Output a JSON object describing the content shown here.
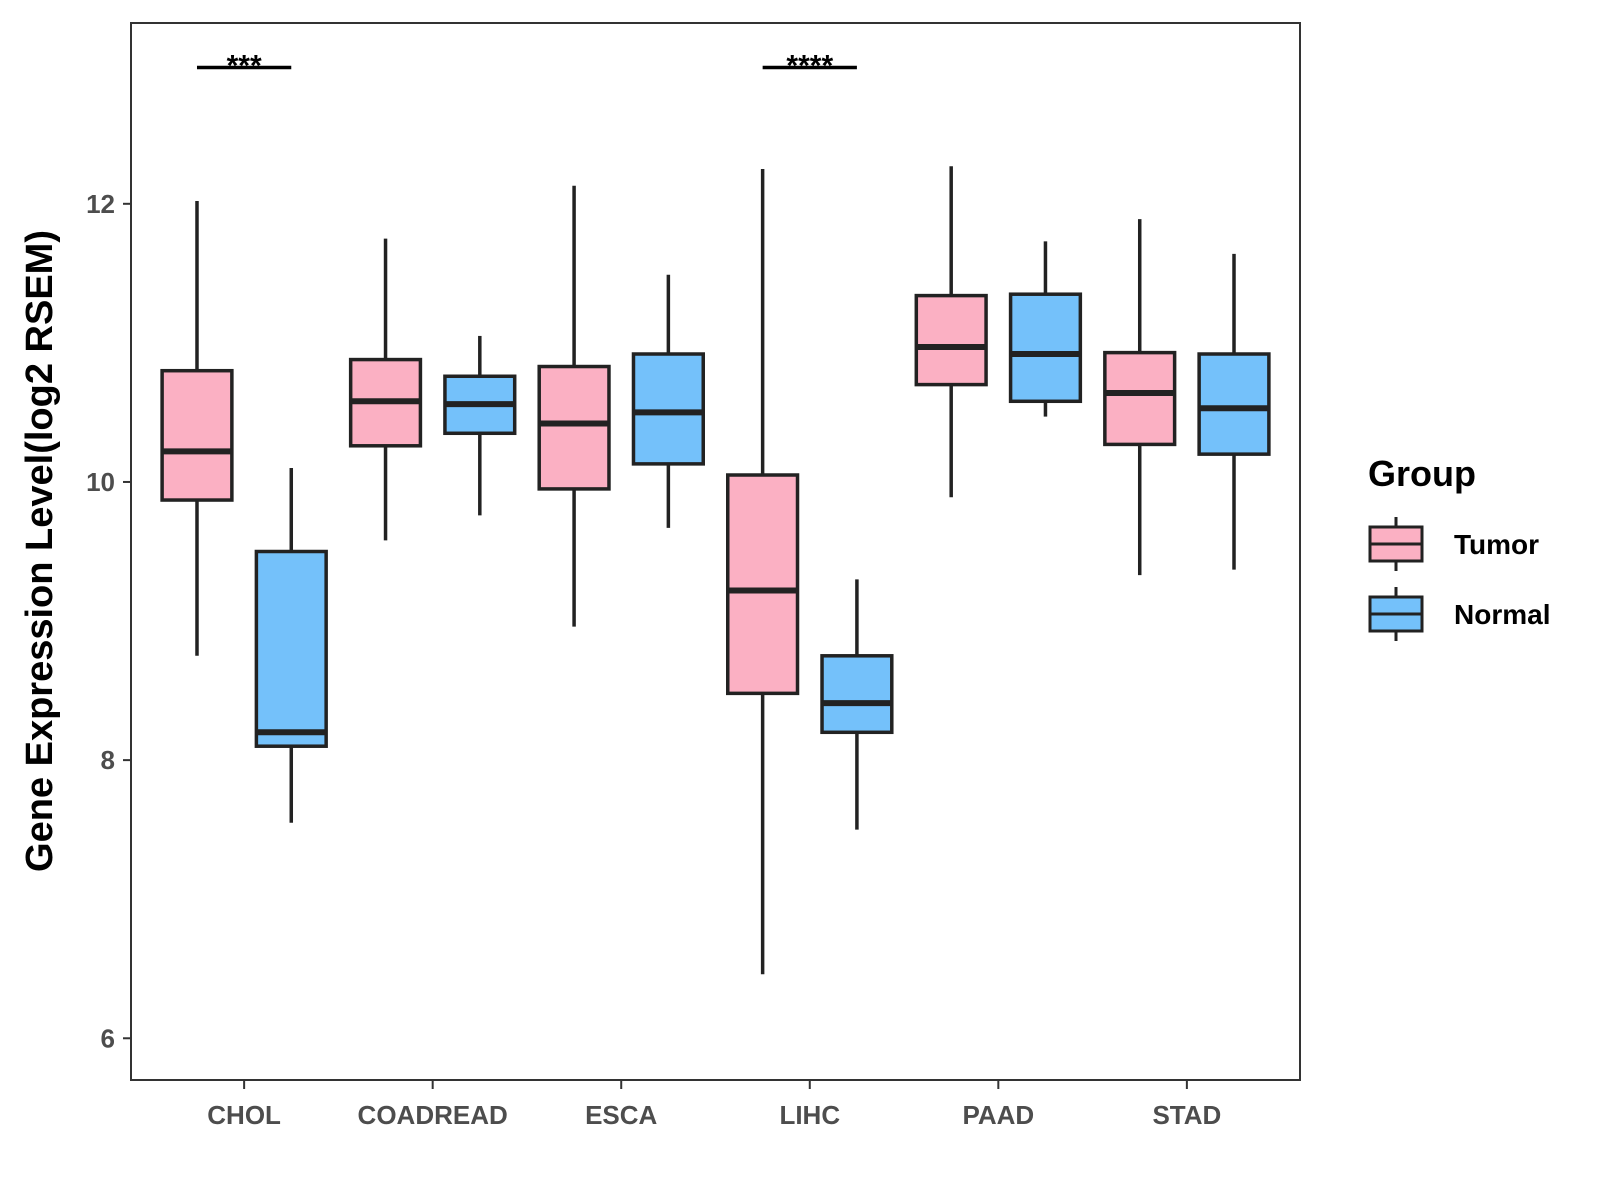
{
  "chart_data": {
    "type": "boxplot",
    "title": "",
    "xlabel": "",
    "ylabel": "Gene Expression Level(log2 RSEM)",
    "ylim": [
      5.7,
      13.3
    ],
    "yticks": [
      6,
      8,
      10,
      12
    ],
    "yticklabels": [
      "6",
      "8",
      "10",
      "12"
    ],
    "categories": [
      "CHOL",
      "COADREAD",
      "ESCA",
      "LIHC",
      "PAAD",
      "STAD"
    ],
    "legend": {
      "title": "Group",
      "position": "right",
      "entries": [
        "Tumor",
        "Normal"
      ]
    },
    "series": [
      {
        "name": "Tumor",
        "color": "#FBB0C3",
        "boxes": [
          {
            "category": "CHOL",
            "min": 8.75,
            "q1": 9.87,
            "median": 10.22,
            "q3": 10.8,
            "max": 12.02
          },
          {
            "category": "COADREAD",
            "min": 9.58,
            "q1": 10.26,
            "median": 10.58,
            "q3": 10.88,
            "max": 11.75
          },
          {
            "category": "ESCA",
            "min": 8.96,
            "q1": 9.95,
            "median": 10.42,
            "q3": 10.83,
            "max": 12.13
          },
          {
            "category": "LIHC",
            "min": 6.46,
            "q1": 8.48,
            "median": 9.22,
            "q3": 10.05,
            "max": 12.25
          },
          {
            "category": "PAAD",
            "min": 9.89,
            "q1": 10.7,
            "median": 10.97,
            "q3": 11.34,
            "max": 12.27
          },
          {
            "category": "STAD",
            "min": 9.33,
            "q1": 10.27,
            "median": 10.64,
            "q3": 10.93,
            "max": 11.89
          }
        ]
      },
      {
        "name": "Normal",
        "color": "#74C1FA",
        "boxes": [
          {
            "category": "CHOL",
            "min": 7.55,
            "q1": 8.1,
            "median": 8.2,
            "q3": 9.5,
            "max": 10.1
          },
          {
            "category": "COADREAD",
            "min": 9.76,
            "q1": 10.35,
            "median": 10.56,
            "q3": 10.76,
            "max": 11.05
          },
          {
            "category": "ESCA",
            "min": 9.67,
            "q1": 10.13,
            "median": 10.5,
            "q3": 10.92,
            "max": 11.49
          },
          {
            "category": "LIHC",
            "min": 7.5,
            "q1": 8.2,
            "median": 8.41,
            "q3": 8.75,
            "max": 9.3
          },
          {
            "category": "PAAD",
            "min": 10.47,
            "q1": 10.58,
            "median": 10.92,
            "q3": 11.35,
            "max": 11.73
          },
          {
            "category": "STAD",
            "min": 9.37,
            "q1": 10.2,
            "median": 10.53,
            "q3": 10.92,
            "max": 11.64
          }
        ]
      }
    ],
    "annotations": [
      {
        "category": "CHOL",
        "label": "***",
        "y": 12.98
      },
      {
        "category": "LIHC",
        "label": "****",
        "y": 12.98
      }
    ]
  }
}
